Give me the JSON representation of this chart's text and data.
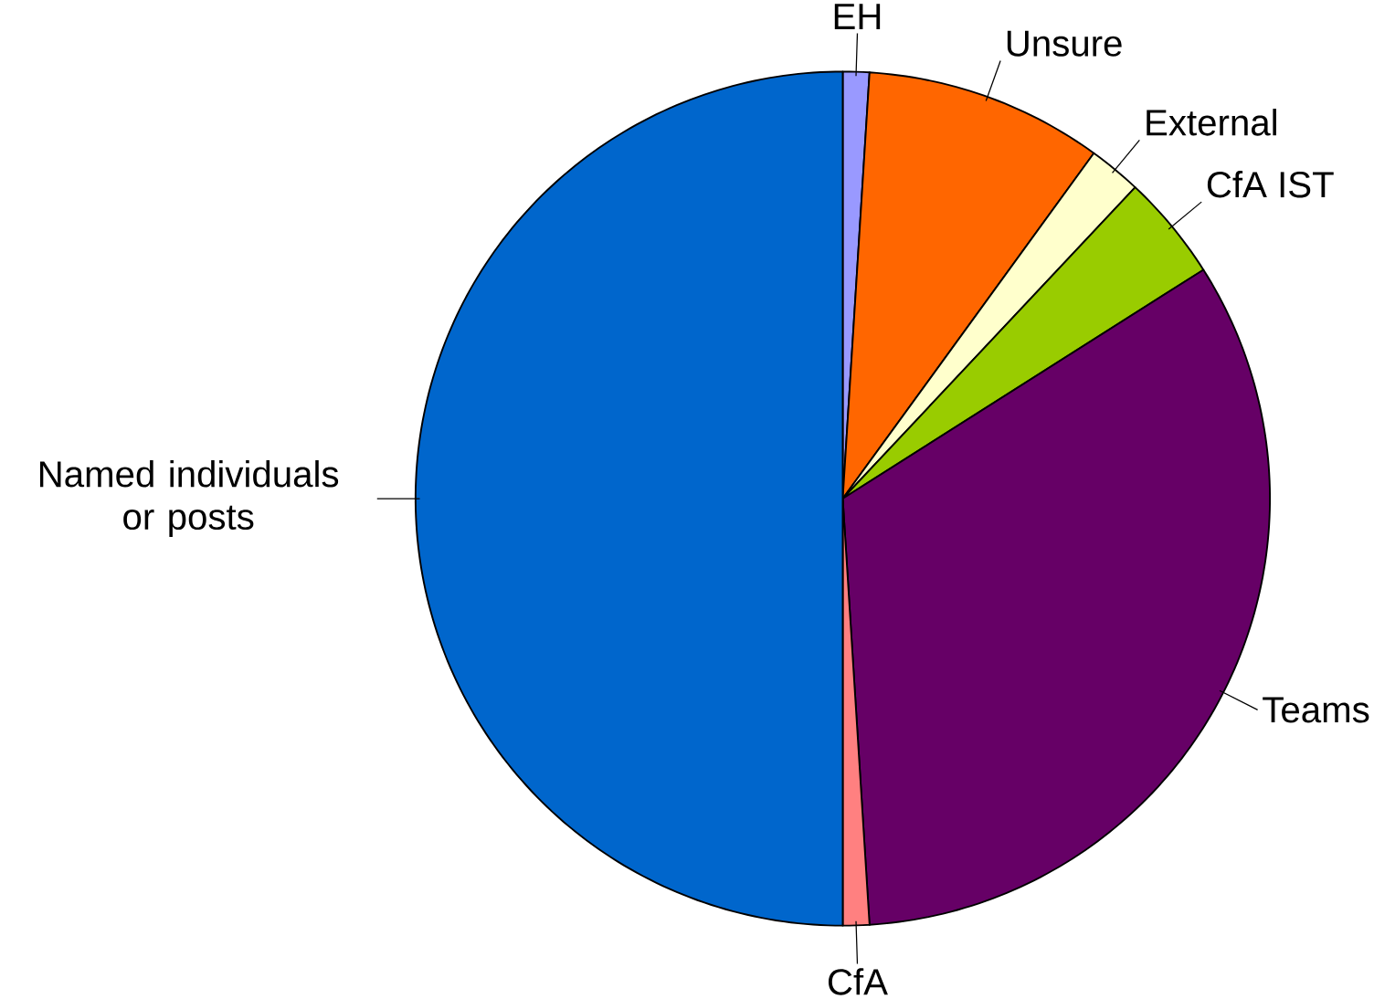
{
  "chart_data": {
    "type": "pie",
    "categories": [
      "EH",
      "Unsure",
      "External",
      "CfA IST",
      "Teams",
      "CfA",
      "Named individuals or posts"
    ],
    "values": [
      1,
      9,
      2,
      4,
      33,
      1,
      50
    ],
    "colors": [
      "#9999ff",
      "#ff6600",
      "#ffffcc",
      "#99cc00",
      "#660066",
      "#ff8080",
      "#0066cc"
    ]
  }
}
